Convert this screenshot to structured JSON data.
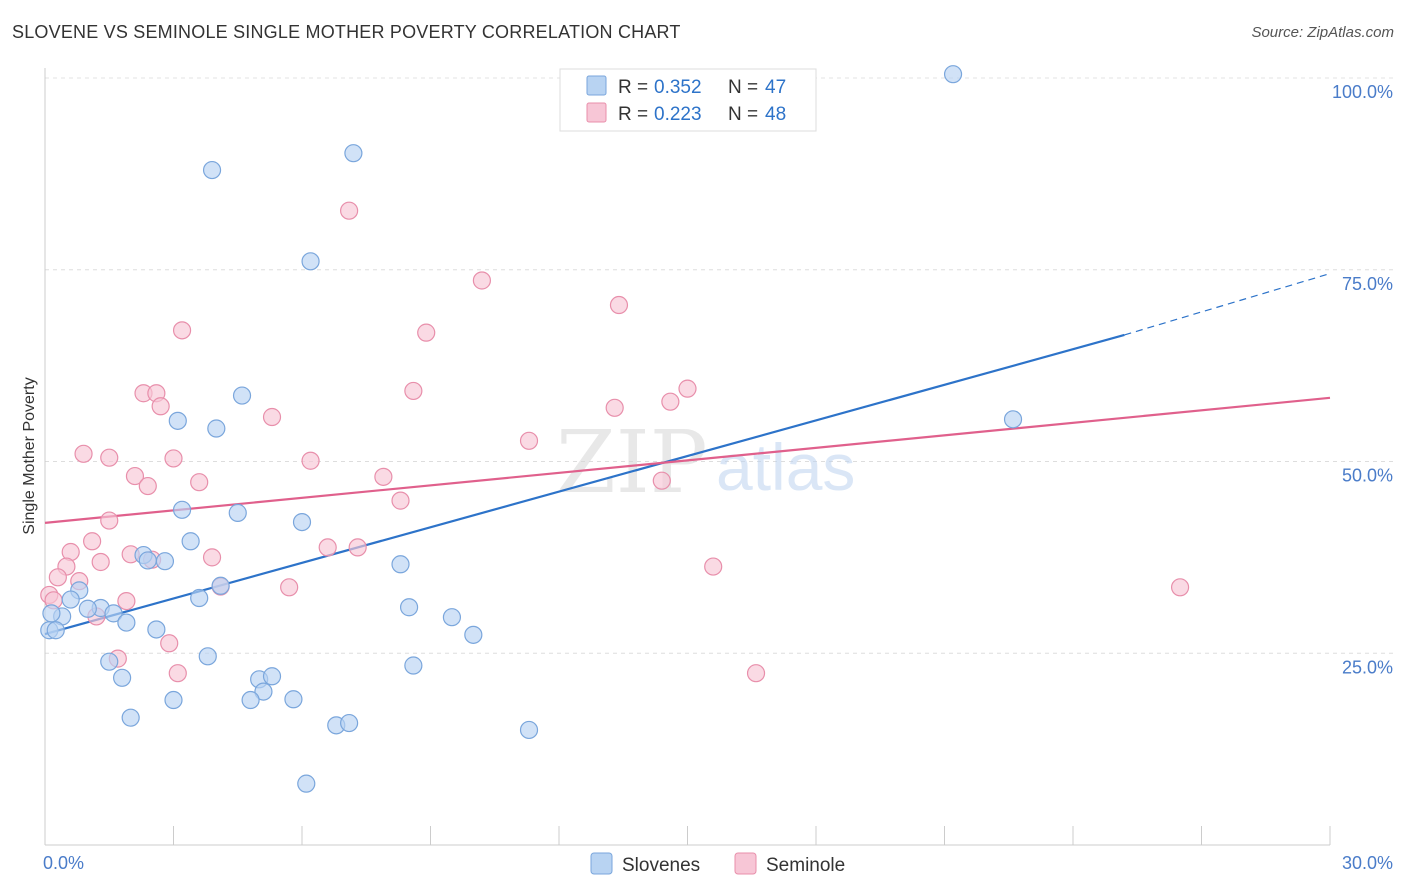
{
  "header": {
    "title": "SLOVENE VS SEMINOLE SINGLE MOTHER POVERTY CORRELATION CHART",
    "source": "Source: ZipAtlas.com"
  },
  "watermark": {
    "zip": "ZIP",
    "atlas": "atlas"
  },
  "legend_box": {
    "rows": [
      {
        "r_label": "R = ",
        "r_value": "0.352",
        "n_label": "N = ",
        "n_value": "47"
      },
      {
        "r_label": "R = ",
        "r_value": "0.223",
        "n_label": "N = ",
        "n_value": "48"
      }
    ]
  },
  "bottom_legend": {
    "series": [
      "Slovenes",
      "Seminole"
    ]
  },
  "chart_data": {
    "type": "scatter",
    "title": "SLOVENE VS SEMINOLE SINGLE MOTHER POVERTY CORRELATION CHART",
    "xlabel": "",
    "ylabel": "Single Mother Poverty",
    "xlim": [
      0,
      30
    ],
    "ylim": [
      0,
      105
    ],
    "x_tick_labels": [
      "0.0%",
      "30.0%"
    ],
    "y_ticks": [
      25,
      50,
      75,
      100
    ],
    "y_tick_labels": [
      "25.0%",
      "50.0%",
      "75.0%",
      "100.0%"
    ],
    "grid": true,
    "legend_position": "top-center",
    "colors": {
      "slovenes_fill": "#b8d3f2",
      "slovenes_stroke": "#7aa6dc",
      "slovenes_line": "#2d73c9",
      "seminole_fill": "#f7c6d6",
      "seminole_stroke": "#e88fab",
      "seminole_line": "#e0608c",
      "tick_label": "#4a7cc9"
    },
    "series": [
      {
        "name": "Slovenes",
        "r": 0.352,
        "n": 47,
        "trend": {
          "x": [
            0,
            25.2,
            30
          ],
          "y": [
            27.5,
            66.5,
            74.5
          ],
          "solid_until": 25.2
        },
        "points": [
          [
            21.2,
            100.5
          ],
          [
            7.2,
            90.2
          ],
          [
            3.9,
            88.0
          ],
          [
            6.2,
            76.1
          ],
          [
            22.6,
            55.5
          ],
          [
            4.6,
            58.6
          ],
          [
            3.1,
            55.3
          ],
          [
            4.0,
            54.3
          ],
          [
            4.5,
            43.3
          ],
          [
            3.2,
            43.7
          ],
          [
            6.0,
            42.1
          ],
          [
            3.4,
            39.6
          ],
          [
            8.3,
            36.6
          ],
          [
            2.3,
            37.8
          ],
          [
            2.4,
            37.1
          ],
          [
            2.8,
            37.0
          ],
          [
            4.1,
            33.8
          ],
          [
            0.8,
            33.2
          ],
          [
            3.6,
            32.2
          ],
          [
            0.6,
            32.0
          ],
          [
            1.3,
            30.9
          ],
          [
            8.5,
            31.0
          ],
          [
            1.0,
            30.8
          ],
          [
            1.6,
            30.2
          ],
          [
            0.4,
            29.8
          ],
          [
            9.5,
            29.7
          ],
          [
            1.9,
            29.0
          ],
          [
            2.6,
            28.1
          ],
          [
            10.0,
            27.4
          ],
          [
            0.1,
            28.0
          ],
          [
            0.25,
            28.0
          ],
          [
            3.8,
            24.6
          ],
          [
            1.5,
            23.9
          ],
          [
            8.6,
            23.4
          ],
          [
            1.8,
            21.8
          ],
          [
            5.0,
            21.6
          ],
          [
            5.3,
            22.0
          ],
          [
            5.1,
            20.0
          ],
          [
            3.0,
            18.9
          ],
          [
            4.8,
            18.9
          ],
          [
            5.8,
            19.0
          ],
          [
            2.0,
            16.6
          ],
          [
            6.8,
            15.6
          ],
          [
            7.1,
            15.9
          ],
          [
            11.3,
            15.0
          ],
          [
            6.1,
            8.0
          ],
          [
            0.15,
            30.2
          ]
        ]
      },
      {
        "name": "Seminole",
        "r": 0.223,
        "n": 48,
        "trend": {
          "x": [
            0,
            30
          ],
          "y": [
            42.0,
            58.3
          ]
        },
        "points": [
          [
            7.1,
            82.7
          ],
          [
            10.2,
            73.6
          ],
          [
            13.4,
            70.4
          ],
          [
            3.2,
            67.1
          ],
          [
            8.9,
            66.8
          ],
          [
            15.0,
            59.5
          ],
          [
            8.6,
            59.2
          ],
          [
            2.3,
            58.9
          ],
          [
            2.6,
            58.9
          ],
          [
            2.7,
            57.2
          ],
          [
            14.6,
            57.8
          ],
          [
            13.3,
            57.0
          ],
          [
            5.3,
            55.8
          ],
          [
            11.3,
            52.7
          ],
          [
            0.9,
            51.0
          ],
          [
            1.5,
            50.5
          ],
          [
            3.0,
            50.4
          ],
          [
            6.2,
            50.1
          ],
          [
            2.1,
            48.1
          ],
          [
            3.6,
            47.3
          ],
          [
            14.4,
            47.5
          ],
          [
            2.4,
            46.8
          ],
          [
            7.9,
            48.0
          ],
          [
            8.3,
            44.9
          ],
          [
            1.5,
            42.3
          ],
          [
            1.1,
            39.6
          ],
          [
            0.6,
            38.2
          ],
          [
            7.3,
            38.8
          ],
          [
            6.6,
            38.8
          ],
          [
            2.0,
            37.9
          ],
          [
            3.9,
            37.5
          ],
          [
            1.3,
            36.9
          ],
          [
            2.5,
            37.2
          ],
          [
            0.5,
            36.3
          ],
          [
            15.6,
            36.3
          ],
          [
            0.3,
            34.9
          ],
          [
            0.8,
            34.4
          ],
          [
            4.1,
            33.7
          ],
          [
            5.7,
            33.6
          ],
          [
            26.5,
            33.6
          ],
          [
            0.1,
            32.6
          ],
          [
            0.2,
            31.9
          ],
          [
            1.9,
            31.8
          ],
          [
            1.2,
            29.8
          ],
          [
            2.9,
            26.3
          ],
          [
            1.7,
            24.3
          ],
          [
            3.1,
            22.4
          ],
          [
            16.6,
            22.4
          ]
        ]
      }
    ]
  }
}
